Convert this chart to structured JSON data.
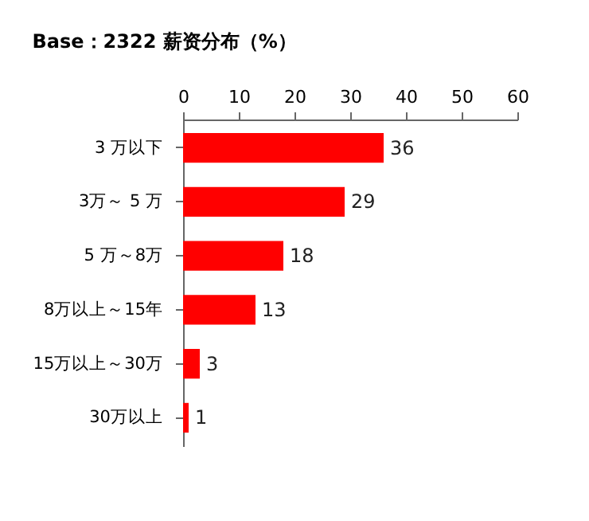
{
  "chart_data": {
    "type": "bar",
    "orientation": "horizontal",
    "title": "Base：2322  薪资分布（%）",
    "categories": [
      "3 万以下",
      "3万～ 5 万",
      "5 万～8万",
      "8万以上～15年",
      "15万以上～30万",
      "30万以上"
    ],
    "values": [
      36,
      29,
      18,
      13,
      3,
      1
    ],
    "color": "#ff0000",
    "xlim": [
      0,
      60
    ],
    "xticks": [
      0,
      10,
      20,
      30,
      40,
      50,
      60
    ],
    "data_labels": true,
    "grid": false
  }
}
